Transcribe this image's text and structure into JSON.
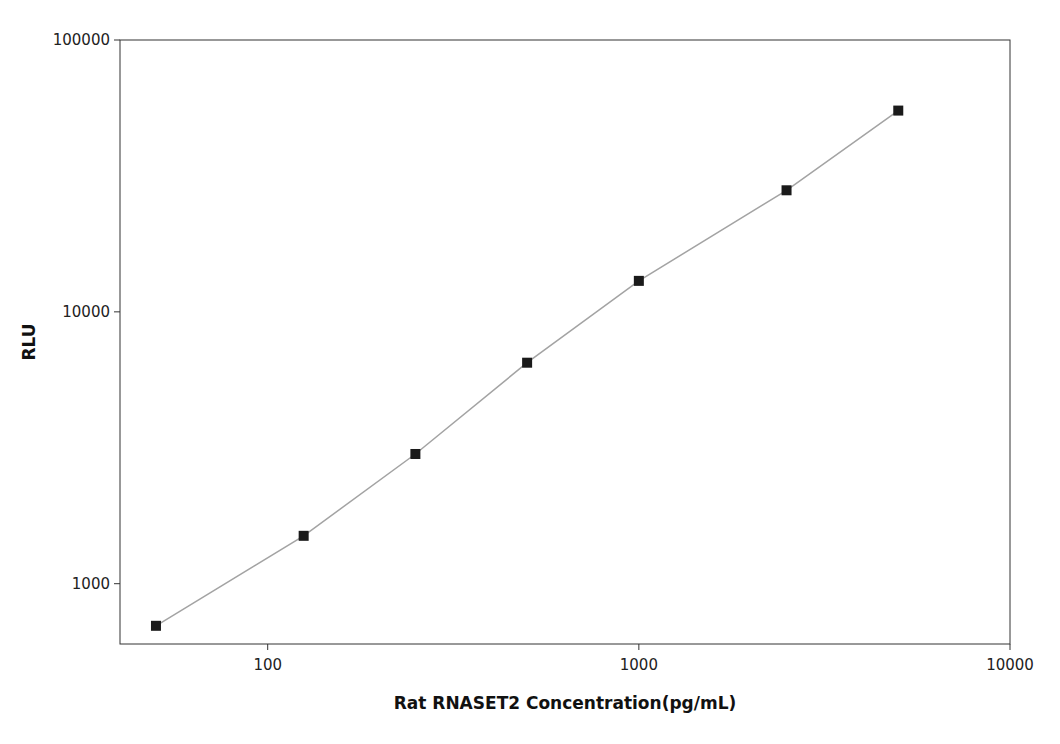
{
  "chart_data": {
    "type": "line",
    "x": [
      50,
      125,
      250,
      500,
      1000,
      2500,
      5000
    ],
    "values": [
      700,
      1500,
      3000,
      6500,
      13000,
      28000,
      55000
    ],
    "xlabel": "Rat RNASET2 Concentration(pg/mL)",
    "ylabel": "RLU",
    "xlim": [
      40,
      10000
    ],
    "ylim": [
      600,
      100000
    ],
    "xticks": [
      100,
      1000,
      10000
    ],
    "yticks": [
      1000,
      10000,
      100000
    ],
    "log": true,
    "grid": false,
    "color": "#1a1a1a",
    "marker": "square"
  }
}
